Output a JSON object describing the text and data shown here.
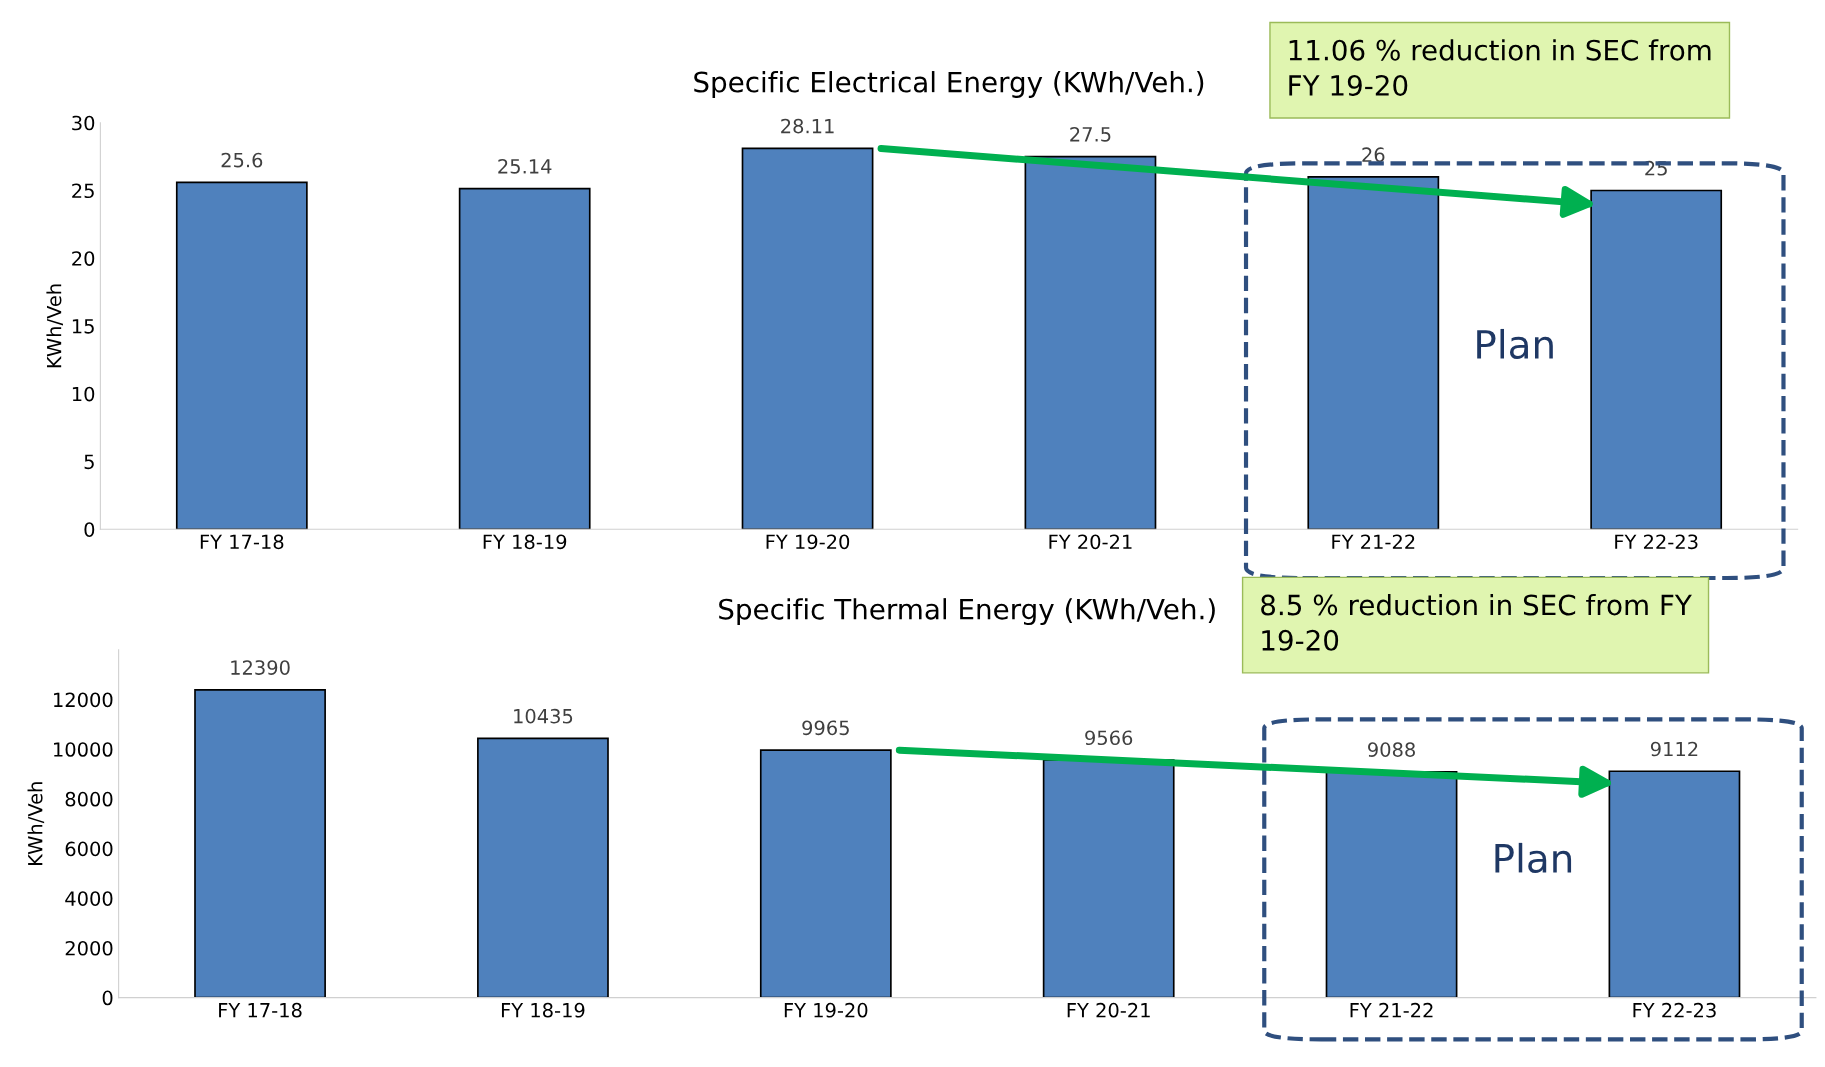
{
  "chart_data": [
    {
      "type": "bar",
      "title": "Specific Electrical Energy (KWh/Veh.)",
      "ylabel": "KWh/Veh",
      "categories": [
        "FY 17-18",
        "FY 18-19",
        "FY 19-20",
        "FY 20-21",
        "FY 21-22",
        "FY 22-23"
      ],
      "values": [
        25.6,
        25.14,
        28.11,
        27.5,
        26,
        25
      ],
      "color": "#4f81bd",
      "ylim": [
        0,
        30
      ],
      "yticks": [
        0,
        5,
        10,
        15,
        20,
        25,
        30
      ],
      "grid": false,
      "data_labels": true,
      "annotations": [
        "11.06 % reduction in SEC from\nFY 19-20",
        "Plan"
      ]
    },
    {
      "type": "bar",
      "title": "Specific Thermal Energy (KWh/Veh.)",
      "ylabel": "KWh/Veh",
      "categories": [
        "FY 17-18",
        "FY 18-19",
        "FY 19-20",
        "FY 20-21",
        "FY 21-22",
        "FY 22-23"
      ],
      "values": [
        12390,
        10435,
        9965,
        9566,
        9088,
        9112
      ],
      "color": "#4f81bd",
      "ylim": [
        0,
        14000
      ],
      "yticks": [
        0,
        2000,
        4000,
        6000,
        8000,
        10000,
        12000
      ],
      "grid": false,
      "data_labels": true,
      "annotations": [
        "8.5 % reduction in SEC from FY\n19-20",
        "Plan"
      ]
    }
  ]
}
